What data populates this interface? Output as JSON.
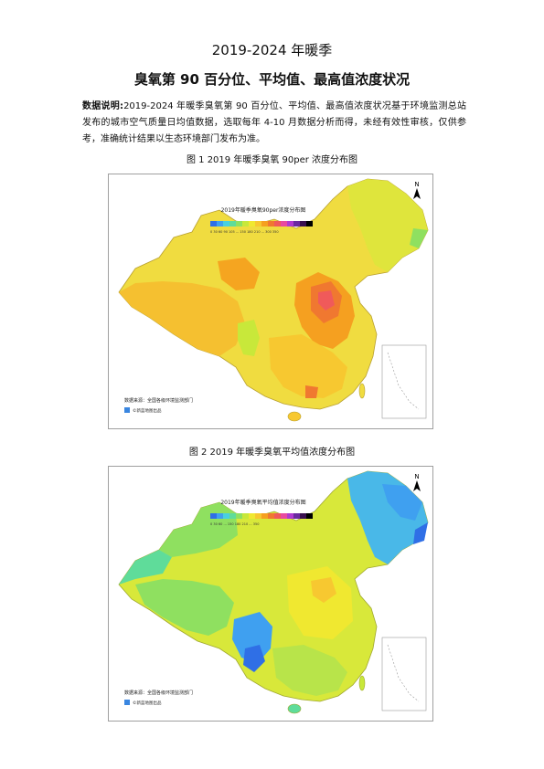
{
  "doc": {
    "title_line1": "2019-2024 年暖季",
    "title_line2": "臭氧第 90 百分位、平均值、最高值浓度状况",
    "description_label": "数据说明:",
    "description_text": "2019-2024 年暖季臭氧第 90 百分位、平均值、最高值浓度状况基于环境监测总站发布的城市空气质量日均值数据，选取每年 4-10 月数据分析而得，未经有效性审核，仅供参考，准确统计结果以生态环境部门发布为准。"
  },
  "figures": [
    {
      "caption": "图 1 2019 年暖季臭氧 90per 浓度分布图",
      "map_title": "2019年暖季臭氧90per浓度分布图",
      "legend_ticks": "0 30 60 90 105 ... 150 180 210 ... 300 350",
      "source_text": "数据来源：全国各级环境监测部门",
      "logo_text": "©新蓝地图出品",
      "north_label": "N",
      "colors": [
        "#2f6fe6",
        "#3fa0f0",
        "#49d0e0",
        "#5fdc9a",
        "#8fe060",
        "#c8e83a",
        "#f0e830",
        "#f7c830",
        "#f5a020",
        "#f07830",
        "#f05a5a",
        "#e84aa0",
        "#b03ad0",
        "#6a2aa0",
        "#3a1050",
        "#000000"
      ]
    },
    {
      "caption": "图 2 2019 年暖季臭氧平均值浓度分布图",
      "map_title": "2019年暖季臭氧平均值浓度分布图",
      "legend_ticks": "0 30 60 ... 150 180 210 ... 350",
      "source_text": "数据来源：全国各级环境监测部门",
      "logo_text": "©新蓝地图出品",
      "north_label": "N",
      "colors": [
        "#2f6fe6",
        "#3fa0f0",
        "#49d0e0",
        "#5fdc9a",
        "#8fe060",
        "#c8e83a",
        "#f0e830",
        "#f7c830",
        "#f5a020",
        "#f07830",
        "#f05a5a",
        "#e84aa0",
        "#b03ad0",
        "#6a2aa0",
        "#3a1050",
        "#000000"
      ]
    }
  ]
}
